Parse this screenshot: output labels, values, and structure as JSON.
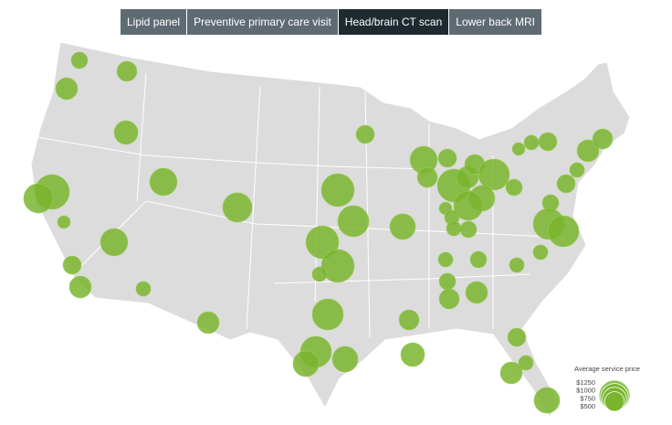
{
  "tabs": {
    "labels": [
      "Lipid panel",
      "Preventive primary care visit",
      "Head/brain CT scan",
      "Lower back MRI"
    ],
    "active": 2
  },
  "legend": {
    "title": "Average service price",
    "ticks": [
      {
        "value": 1250,
        "label": "$1250"
      },
      {
        "value": 1000,
        "label": "$1000"
      },
      {
        "value": 750,
        "label": "$750"
      },
      {
        "value": 500,
        "label": "$500"
      }
    ]
  },
  "bubbles": {
    "color": "#7ab52e",
    "values": [
      350,
      520,
      620,
      730,
      1560,
      1110,
      210,
      970,
      1110,
      970,
      430,
      620,
      280,
      620,
      1400,
      1250,
      1400,
      1400,
      280,
      1250,
      1250,
      850,
      850,
      430,
      850,
      520,
      730,
      970,
      520,
      430,
      1400,
      620,
      520,
      1250,
      850,
      1110,
      210,
      280,
      350,
      280,
      350,
      280,
      350,
      350,
      520,
      620,
      280,
      280,
      350,
      1250,
      1250,
      430,
      280,
      620,
      520,
      430,
      280,
      210,
      430,
      620,
      280,
      850
    ]
  }
}
